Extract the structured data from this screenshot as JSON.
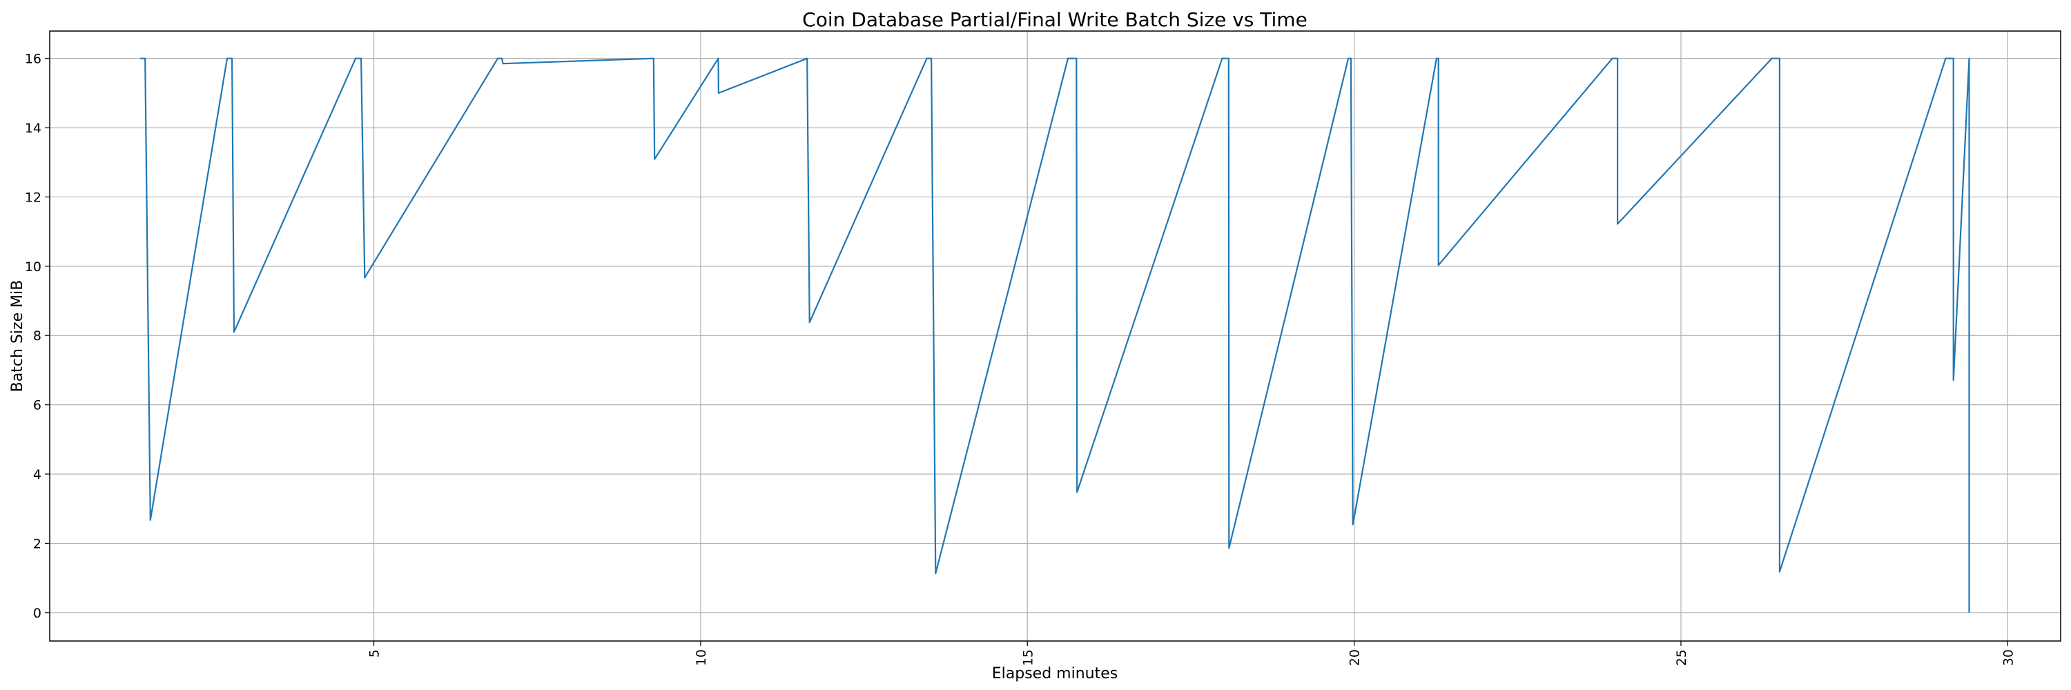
{
  "chart_data": {
    "type": "line",
    "title": "Coin Database Partial/Final Write Batch Size vs Time",
    "xlabel": "Elapsed minutes",
    "ylabel": "Batch Size MiB",
    "xlim": [
      0.04,
      30.81
    ],
    "ylim": [
      -0.82,
      16.79
    ],
    "xticks": [
      5,
      10,
      15,
      20,
      25,
      30
    ],
    "yticks": [
      0,
      2,
      4,
      6,
      8,
      10,
      12,
      14,
      16
    ],
    "grid": true,
    "line_color": "#1f77b4",
    "x": [
      1.425,
      1.5,
      1.58,
      2.755,
      2.83,
      2.86,
      4.72,
      4.805,
      4.86,
      6.895,
      6.96,
      6.975,
      9.28,
      9.295,
      10.27,
      10.275,
      11.63,
      11.667,
      13.46,
      13.53,
      13.595,
      15.62,
      15.75,
      15.76,
      17.98,
      18.08,
      18.085,
      19.91,
      19.95,
      19.98,
      21.26,
      21.29,
      21.29,
      23.95,
      24.03,
      24.03,
      26.39,
      26.51,
      26.51,
      29.05,
      29.17,
      29.17,
      29.41,
      29.41
    ],
    "y": [
      16,
      16,
      2.67,
      16,
      16,
      8.1,
      16,
      16,
      9.67,
      16,
      16,
      15.85,
      16,
      13.09,
      16,
      15.0,
      16,
      8.38,
      16,
      16,
      1.13,
      16,
      16,
      3.48,
      16,
      16,
      1.86,
      16,
      16,
      2.54,
      16,
      16,
      10.03,
      16,
      16,
      11.22,
      16,
      16,
      1.18,
      16,
      16,
      6.71,
      16,
      0
    ]
  }
}
